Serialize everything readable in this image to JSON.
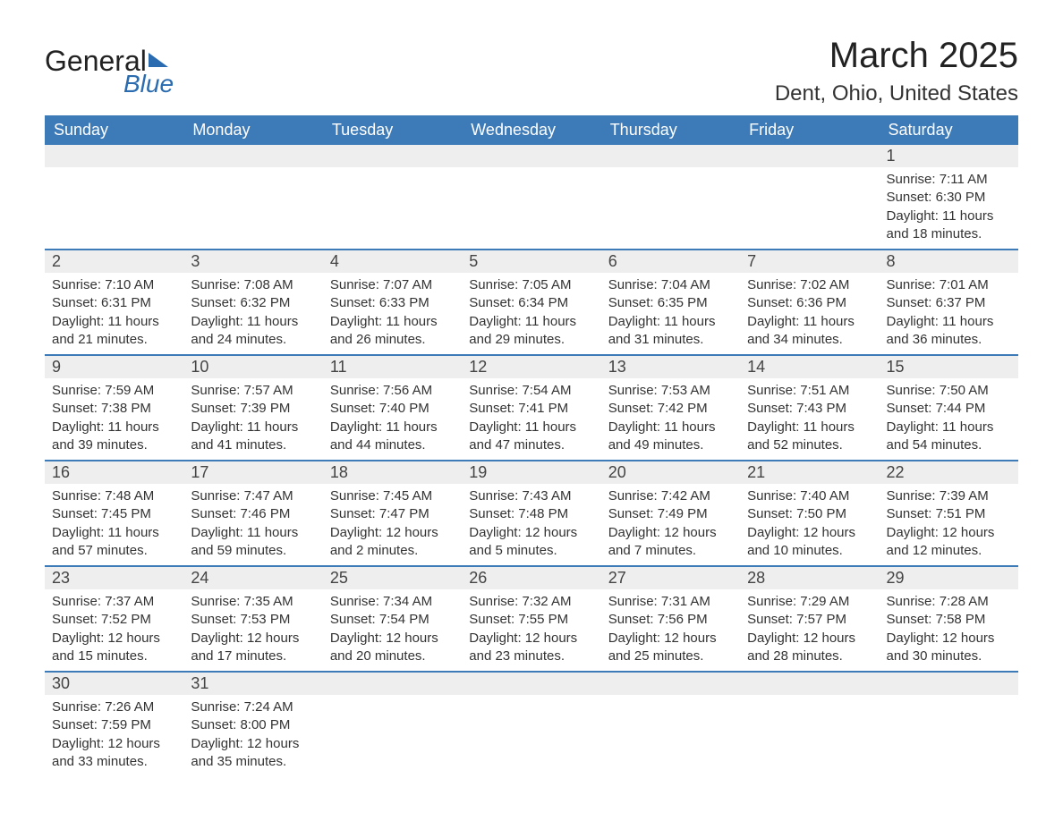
{
  "brand": {
    "line1": "General",
    "line2": "Blue"
  },
  "title": "March 2025",
  "location": "Dent, Ohio, United States",
  "colors": {
    "header_bg": "#3d7ab8",
    "header_text": "#ffffff",
    "daynum_bg": "#eeeeee",
    "border": "#3d7ab8",
    "brand_blue": "#2b6cb0",
    "body_text": "#333333",
    "page_bg": "#ffffff"
  },
  "typography": {
    "title_fontsize": 40,
    "location_fontsize": 24,
    "header_fontsize": 18,
    "daynum_fontsize": 18,
    "detail_fontsize": 15,
    "font_family": "Arial"
  },
  "layout": {
    "columns": 7,
    "weeks": 6
  },
  "weekdays": [
    "Sunday",
    "Monday",
    "Tuesday",
    "Wednesday",
    "Thursday",
    "Friday",
    "Saturday"
  ],
  "labels": {
    "sunrise": "Sunrise",
    "sunset": "Sunset",
    "daylight": "Daylight"
  },
  "weeks": [
    [
      null,
      null,
      null,
      null,
      null,
      null,
      {
        "day": "1",
        "sunrise": "7:11 AM",
        "sunset": "6:30 PM",
        "daylight": "11 hours and 18 minutes."
      }
    ],
    [
      {
        "day": "2",
        "sunrise": "7:10 AM",
        "sunset": "6:31 PM",
        "daylight": "11 hours and 21 minutes."
      },
      {
        "day": "3",
        "sunrise": "7:08 AM",
        "sunset": "6:32 PM",
        "daylight": "11 hours and 24 minutes."
      },
      {
        "day": "4",
        "sunrise": "7:07 AM",
        "sunset": "6:33 PM",
        "daylight": "11 hours and 26 minutes."
      },
      {
        "day": "5",
        "sunrise": "7:05 AM",
        "sunset": "6:34 PM",
        "daylight": "11 hours and 29 minutes."
      },
      {
        "day": "6",
        "sunrise": "7:04 AM",
        "sunset": "6:35 PM",
        "daylight": "11 hours and 31 minutes."
      },
      {
        "day": "7",
        "sunrise": "7:02 AM",
        "sunset": "6:36 PM",
        "daylight": "11 hours and 34 minutes."
      },
      {
        "day": "8",
        "sunrise": "7:01 AM",
        "sunset": "6:37 PM",
        "daylight": "11 hours and 36 minutes."
      }
    ],
    [
      {
        "day": "9",
        "sunrise": "7:59 AM",
        "sunset": "7:38 PM",
        "daylight": "11 hours and 39 minutes."
      },
      {
        "day": "10",
        "sunrise": "7:57 AM",
        "sunset": "7:39 PM",
        "daylight": "11 hours and 41 minutes."
      },
      {
        "day": "11",
        "sunrise": "7:56 AM",
        "sunset": "7:40 PM",
        "daylight": "11 hours and 44 minutes."
      },
      {
        "day": "12",
        "sunrise": "7:54 AM",
        "sunset": "7:41 PM",
        "daylight": "11 hours and 47 minutes."
      },
      {
        "day": "13",
        "sunrise": "7:53 AM",
        "sunset": "7:42 PM",
        "daylight": "11 hours and 49 minutes."
      },
      {
        "day": "14",
        "sunrise": "7:51 AM",
        "sunset": "7:43 PM",
        "daylight": "11 hours and 52 minutes."
      },
      {
        "day": "15",
        "sunrise": "7:50 AM",
        "sunset": "7:44 PM",
        "daylight": "11 hours and 54 minutes."
      }
    ],
    [
      {
        "day": "16",
        "sunrise": "7:48 AM",
        "sunset": "7:45 PM",
        "daylight": "11 hours and 57 minutes."
      },
      {
        "day": "17",
        "sunrise": "7:47 AM",
        "sunset": "7:46 PM",
        "daylight": "11 hours and 59 minutes."
      },
      {
        "day": "18",
        "sunrise": "7:45 AM",
        "sunset": "7:47 PM",
        "daylight": "12 hours and 2 minutes."
      },
      {
        "day": "19",
        "sunrise": "7:43 AM",
        "sunset": "7:48 PM",
        "daylight": "12 hours and 5 minutes."
      },
      {
        "day": "20",
        "sunrise": "7:42 AM",
        "sunset": "7:49 PM",
        "daylight": "12 hours and 7 minutes."
      },
      {
        "day": "21",
        "sunrise": "7:40 AM",
        "sunset": "7:50 PM",
        "daylight": "12 hours and 10 minutes."
      },
      {
        "day": "22",
        "sunrise": "7:39 AM",
        "sunset": "7:51 PM",
        "daylight": "12 hours and 12 minutes."
      }
    ],
    [
      {
        "day": "23",
        "sunrise": "7:37 AM",
        "sunset": "7:52 PM",
        "daylight": "12 hours and 15 minutes."
      },
      {
        "day": "24",
        "sunrise": "7:35 AM",
        "sunset": "7:53 PM",
        "daylight": "12 hours and 17 minutes."
      },
      {
        "day": "25",
        "sunrise": "7:34 AM",
        "sunset": "7:54 PM",
        "daylight": "12 hours and 20 minutes."
      },
      {
        "day": "26",
        "sunrise": "7:32 AM",
        "sunset": "7:55 PM",
        "daylight": "12 hours and 23 minutes."
      },
      {
        "day": "27",
        "sunrise": "7:31 AM",
        "sunset": "7:56 PM",
        "daylight": "12 hours and 25 minutes."
      },
      {
        "day": "28",
        "sunrise": "7:29 AM",
        "sunset": "7:57 PM",
        "daylight": "12 hours and 28 minutes."
      },
      {
        "day": "29",
        "sunrise": "7:28 AM",
        "sunset": "7:58 PM",
        "daylight": "12 hours and 30 minutes."
      }
    ],
    [
      {
        "day": "30",
        "sunrise": "7:26 AM",
        "sunset": "7:59 PM",
        "daylight": "12 hours and 33 minutes."
      },
      {
        "day": "31",
        "sunrise": "7:24 AM",
        "sunset": "8:00 PM",
        "daylight": "12 hours and 35 minutes."
      },
      null,
      null,
      null,
      null,
      null
    ]
  ]
}
